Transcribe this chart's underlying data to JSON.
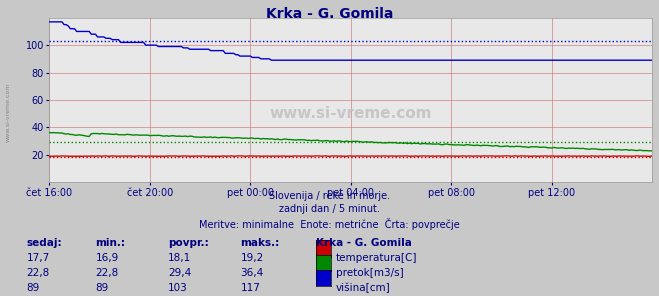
{
  "title": "Krka - G. Gomila",
  "background_color": "#c8c8c8",
  "plot_bg_color": "#e8e8e8",
  "grid_color_h": "#d08080",
  "grid_color_v": "#d08080",
  "x_labels": [
    "čet 16:00",
    "čet 20:00",
    "pet 00:00",
    "pet 04:00",
    "pet 08:00",
    "pet 12:00"
  ],
  "x_ticks_pos": [
    0,
    48,
    96,
    144,
    192,
    240
  ],
  "total_points": 289,
  "ylim": [
    0,
    120
  ],
  "yticks": [
    20,
    40,
    60,
    80,
    100
  ],
  "temperatura_color": "#cc0000",
  "pretok_color": "#008800",
  "visina_color": "#0000cc",
  "temperatura_avg_line": 18.1,
  "pretok_avg_line": 29.4,
  "visina_avg_line": 103,
  "temperatura_min": "16,9",
  "temperatura_max": "19,2",
  "temperatura_sedaj": "17,7",
  "temperatura_povpr": "18,1",
  "pretok_min": "22,8",
  "pretok_max": "36,4",
  "pretok_sedaj": "22,8",
  "pretok_povpr": "29,4",
  "visina_min": "89",
  "visina_max": "117",
  "visina_sedaj": "89",
  "visina_povpr": "103",
  "subtitle1": "Slovenija / reke in morje.",
  "subtitle2": "zadnji dan / 5 minut.",
  "subtitle3": "Meritve: minimalne  Enote: metrične  Črta: povprečje",
  "table_headers": [
    "sedaj:",
    "min.:",
    "povpr.:",
    "maks.:",
    "Krka - G. Gomila"
  ],
  "row_labels": [
    "temperatura[C]",
    "pretok[m3/s]",
    "višina[cm]"
  ],
  "watermark": "www.si-vreme.com",
  "text_color": "#000080",
  "left_watermark": "www.si-vreme.com"
}
